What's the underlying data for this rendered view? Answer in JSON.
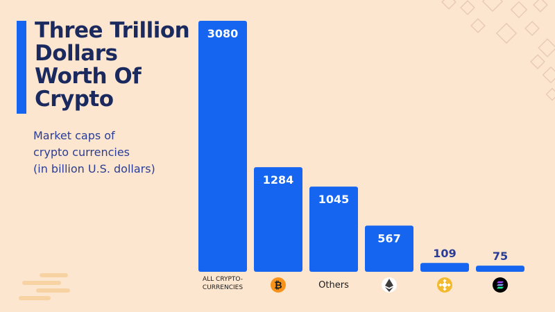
{
  "title": "Three Trillion\nDollars\nWorth Of\nCrypto",
  "subtitle_lines": [
    "Market caps of",
    "crypto currencies",
    "(in billion U.S. dollars)"
  ],
  "colors": {
    "background": "#fce6cf",
    "bar": "#1565f0",
    "title": "#1a2a5e",
    "subtitle": "#2a3d96",
    "value_inside": "#ffffff",
    "value_outside": "#2a3d96"
  },
  "chart_data": {
    "type": "bar",
    "categories": [
      "ALL CRYPTO-\nCURRENCIES",
      "Bitcoin",
      "Others",
      "Ethereum",
      "BNB",
      "Solana"
    ],
    "category_display": [
      {
        "kind": "text",
        "text": "ALL CRYPTO-\nCURRENCIES"
      },
      {
        "kind": "icon",
        "icon": "bitcoin-icon",
        "color": "#f7931a"
      },
      {
        "kind": "text",
        "text": "Others"
      },
      {
        "kind": "icon",
        "icon": "ethereum-icon",
        "color": "#3c3c3d"
      },
      {
        "kind": "icon",
        "icon": "bnb-icon",
        "color": "#f3ba2f"
      },
      {
        "kind": "icon",
        "icon": "solana-icon",
        "color": "#000000"
      }
    ],
    "values": [
      3080,
      1284,
      1045,
      567,
      109,
      75
    ],
    "ylim": [
      0,
      3080
    ],
    "xlabel": "",
    "ylabel": "",
    "grid": false,
    "legend": "none"
  }
}
